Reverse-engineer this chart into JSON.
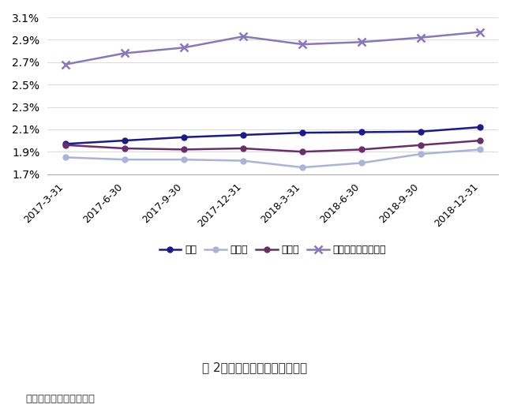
{
  "x_labels": [
    "2017-3-31",
    "2017-6-30",
    "2017-9-30",
    "2017-12-31",
    "2018-3-31",
    "2018-6-30",
    "2018-9-30",
    "2018-12-31"
  ],
  "series": [
    {
      "name": "大行",
      "legend": "大行",
      "values": [
        1.97,
        2.0,
        2.03,
        2.05,
        2.07,
        2.075,
        2.08,
        2.12
      ],
      "color": "#1a1a8a",
      "marker": "o",
      "linestyle": "-",
      "linewidth": 1.8,
      "markersize": 5
    },
    {
      "name": "股份行",
      "legend": "股份行",
      "values": [
        1.85,
        1.83,
        1.83,
        1.82,
        1.76,
        1.8,
        1.88,
        1.92
      ],
      "color": "#aab4d8",
      "marker": "o",
      "linestyle": "-",
      "linewidth": 1.8,
      "markersize": 5
    },
    {
      "name": "城商行",
      "legend": "城商行",
      "values": [
        1.96,
        1.93,
        1.92,
        1.93,
        1.9,
        1.92,
        1.96,
        2.0
      ],
      "color": "#6b2d6b",
      "marker": "o",
      "linestyle": "-",
      "linewidth": 1.8,
      "markersize": 5
    },
    {
      "name": "农村金融机构",
      "legend": "农村金融机构的角度",
      "values": [
        2.68,
        2.78,
        2.83,
        2.93,
        2.86,
        2.88,
        2.92,
        2.97
      ],
      "color": "#8878b8",
      "marker": "x",
      "linestyle": "-",
      "linewidth": 1.8,
      "markersize": 7,
      "markeredgewidth": 1.8
    }
  ],
  "ylim": [
    1.7,
    3.15
  ],
  "yticks": [
    1.7,
    1.9,
    2.1,
    2.3,
    2.5,
    2.7,
    2.9,
    3.1
  ],
  "ytick_labels": [
    "1.7%",
    "1.9%",
    "2.1%",
    "2.3%",
    "2.5%",
    "2.7%",
    "2.9%",
    "3.1%"
  ],
  "title": "图 2：各类銀行净息差出现分化",
  "source": "数据来源：中国銀保监会",
  "background_color": "#ffffff"
}
